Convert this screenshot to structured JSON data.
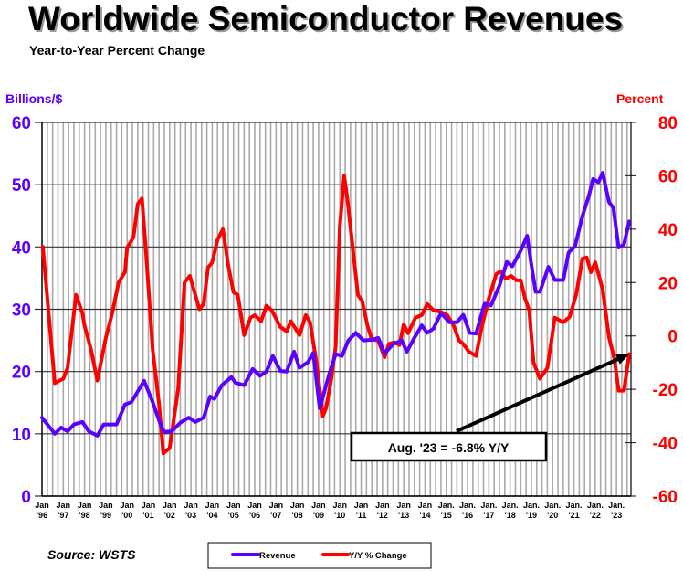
{
  "chart_data": {
    "type": "line",
    "title": "Worldwide Semiconductor Revenues",
    "subtitle": "Year-to-Year Percent Change",
    "left_axis": {
      "label": "Billions/$",
      "range": [
        0,
        60
      ],
      "ticks": [
        0,
        10,
        20,
        30,
        40,
        50,
        60
      ]
    },
    "right_axis": {
      "label": "Percent",
      "range": [
        -60,
        80
      ],
      "ticks": [
        -60,
        -40,
        -20,
        0,
        20,
        40,
        60,
        80
      ]
    },
    "x_range": [
      1996,
      2023.68
    ],
    "x_ticks": [
      {
        "m": "Jan",
        "y": "'96"
      },
      {
        "m": "Jan",
        "y": "'97"
      },
      {
        "m": "Jan",
        "y": "'98"
      },
      {
        "m": "Jan",
        "y": "'99"
      },
      {
        "m": "Jan",
        "y": "'00"
      },
      {
        "m": "Jan",
        "y": "'01"
      },
      {
        "m": "Jan",
        "y": "'02"
      },
      {
        "m": "Jan",
        "y": "'03"
      },
      {
        "m": "Jan",
        "y": "'04"
      },
      {
        "m": "Jan",
        "y": "'05"
      },
      {
        "m": "Jan",
        "y": "'06"
      },
      {
        "m": "Jan",
        "y": "'07"
      },
      {
        "m": "Jan",
        "y": "'08"
      },
      {
        "m": "Jan",
        "y": "'09"
      },
      {
        "m": "Jan",
        "y": "'10"
      },
      {
        "m": "Jan",
        "y": "'11"
      },
      {
        "m": "Jan",
        "y": "'12"
      },
      {
        "m": "Jan",
        "y": "'13"
      },
      {
        "m": "Jan",
        "y": "'14"
      },
      {
        "m": "Jan.",
        "y": "'15"
      },
      {
        "m": "Jan.",
        "y": "'16"
      },
      {
        "m": "Jan.",
        "y": "'17"
      },
      {
        "m": "Jan.",
        "y": "'18"
      },
      {
        "m": "Jan.",
        "y": "'19"
      },
      {
        "m": "Jan.",
        "y": "'20"
      },
      {
        "m": "Jan.",
        "y": "'21"
      },
      {
        "m": "Jan.",
        "y": "'22"
      },
      {
        "m": "Jan.",
        "y": "'23"
      }
    ],
    "grid": true,
    "legend_position": "bottom",
    "series": [
      {
        "name": "Revenue",
        "axis": "left",
        "color": "#5a00ff",
        "points": [
          [
            1996.0,
            12.6
          ],
          [
            1996.6,
            10.0
          ],
          [
            1996.9,
            11.0
          ],
          [
            1997.2,
            10.4
          ],
          [
            1997.5,
            11.5
          ],
          [
            1997.9,
            11.9
          ],
          [
            1998.2,
            10.4
          ],
          [
            1998.6,
            9.7
          ],
          [
            1998.9,
            11.5
          ],
          [
            1999.5,
            11.5
          ],
          [
            1999.9,
            14.7
          ],
          [
            2000.2,
            15.1
          ],
          [
            2000.8,
            18.5
          ],
          [
            2001.2,
            15.1
          ],
          [
            2001.6,
            11.2
          ],
          [
            2001.75,
            10.3
          ],
          [
            2002.1,
            10.4
          ],
          [
            2002.5,
            11.8
          ],
          [
            2002.9,
            12.6
          ],
          [
            2003.2,
            11.9
          ],
          [
            2003.6,
            12.6
          ],
          [
            2003.9,
            16.0
          ],
          [
            2004.1,
            15.6
          ],
          [
            2004.45,
            17.8
          ],
          [
            2004.9,
            19.1
          ],
          [
            2005.1,
            18.2
          ],
          [
            2005.5,
            17.8
          ],
          [
            2005.9,
            20.4
          ],
          [
            2006.25,
            19.3
          ],
          [
            2006.55,
            20.0
          ],
          [
            2006.85,
            22.5
          ],
          [
            2007.2,
            20.1
          ],
          [
            2007.5,
            20.0
          ],
          [
            2007.85,
            23.2
          ],
          [
            2008.1,
            20.6
          ],
          [
            2008.5,
            21.5
          ],
          [
            2008.75,
            23.0
          ],
          [
            2009.05,
            14.1
          ],
          [
            2009.5,
            19.6
          ],
          [
            2009.8,
            22.8
          ],
          [
            2010.1,
            22.5
          ],
          [
            2010.4,
            25.0
          ],
          [
            2010.75,
            26.2
          ],
          [
            2011.1,
            25.0
          ],
          [
            2011.5,
            25.1
          ],
          [
            2011.8,
            25.4
          ],
          [
            2012.1,
            22.9
          ],
          [
            2012.5,
            24.4
          ],
          [
            2012.9,
            25.0
          ],
          [
            2013.15,
            23.2
          ],
          [
            2013.45,
            25.1
          ],
          [
            2013.85,
            27.4
          ],
          [
            2014.1,
            26.2
          ],
          [
            2014.4,
            26.9
          ],
          [
            2014.75,
            29.4
          ],
          [
            2015.15,
            27.9
          ],
          [
            2015.5,
            27.9
          ],
          [
            2015.8,
            29.1
          ],
          [
            2016.1,
            26.2
          ],
          [
            2016.4,
            26.1
          ],
          [
            2016.8,
            30.9
          ],
          [
            2017.1,
            30.6
          ],
          [
            2017.5,
            33.8
          ],
          [
            2017.85,
            37.6
          ],
          [
            2018.1,
            36.9
          ],
          [
            2018.5,
            39.4
          ],
          [
            2018.8,
            41.8
          ],
          [
            2019.0,
            37.2
          ],
          [
            2019.2,
            32.8
          ],
          [
            2019.4,
            32.8
          ],
          [
            2019.8,
            36.8
          ],
          [
            2020.1,
            34.7
          ],
          [
            2020.5,
            34.7
          ],
          [
            2020.75,
            39.1
          ],
          [
            2021.05,
            40.1
          ],
          [
            2021.4,
            45.0
          ],
          [
            2021.7,
            48.2
          ],
          [
            2021.9,
            50.9
          ],
          [
            2022.15,
            50.4
          ],
          [
            2022.35,
            51.9
          ],
          [
            2022.65,
            47.2
          ],
          [
            2022.85,
            46.3
          ],
          [
            2023.1,
            39.9
          ],
          [
            2023.35,
            40.4
          ],
          [
            2023.6,
            44.1
          ]
        ]
      },
      {
        "name": "Y/Y % Change",
        "axis": "right",
        "color": "#ff0000",
        "points": [
          [
            1996.04,
            33.4
          ],
          [
            1996.6,
            -17.7
          ],
          [
            1997.0,
            -16.0
          ],
          [
            1997.2,
            -12.0
          ],
          [
            1997.6,
            15.4
          ],
          [
            1997.9,
            8.5
          ],
          [
            1998.0,
            3.8
          ],
          [
            1998.3,
            -5.0
          ],
          [
            1998.6,
            -16.7
          ],
          [
            1999.0,
            -0.7
          ],
          [
            1999.3,
            8.5
          ],
          [
            1999.6,
            20.0
          ],
          [
            1999.9,
            24.0
          ],
          [
            2000.0,
            33.0
          ],
          [
            2000.3,
            37.0
          ],
          [
            2000.5,
            49.5
          ],
          [
            2000.7,
            51.5
          ],
          [
            2000.9,
            30.0
          ],
          [
            2001.2,
            -5.0
          ],
          [
            2001.5,
            -25.6
          ],
          [
            2001.7,
            -44.0
          ],
          [
            2002.0,
            -42.0
          ],
          [
            2002.4,
            -20.0
          ],
          [
            2002.7,
            20.0
          ],
          [
            2002.95,
            22.5
          ],
          [
            2003.4,
            10.0
          ],
          [
            2003.6,
            12.0
          ],
          [
            2003.8,
            25.6
          ],
          [
            2004.0,
            27.6
          ],
          [
            2004.25,
            36.0
          ],
          [
            2004.5,
            40.0
          ],
          [
            2004.75,
            26.6
          ],
          [
            2005.0,
            16.4
          ],
          [
            2005.2,
            15.4
          ],
          [
            2005.5,
            0.3
          ],
          [
            2005.8,
            6.8
          ],
          [
            2006.0,
            7.8
          ],
          [
            2006.3,
            5.5
          ],
          [
            2006.55,
            11.3
          ],
          [
            2006.8,
            9.6
          ],
          [
            2007.2,
            3.4
          ],
          [
            2007.5,
            1.7
          ],
          [
            2007.7,
            5.5
          ],
          [
            2008.1,
            0.3
          ],
          [
            2008.4,
            7.8
          ],
          [
            2008.6,
            5.1
          ],
          [
            2008.9,
            -9.9
          ],
          [
            2009.2,
            -30.0
          ],
          [
            2009.35,
            -27.0
          ],
          [
            2009.6,
            -16.0
          ],
          [
            2009.8,
            -4.0
          ],
          [
            2010.0,
            41.0
          ],
          [
            2010.2,
            60.0
          ],
          [
            2010.35,
            51.5
          ],
          [
            2010.6,
            33.4
          ],
          [
            2010.85,
            15.4
          ],
          [
            2011.05,
            13.0
          ],
          [
            2011.3,
            3.8
          ],
          [
            2011.5,
            -1.4
          ],
          [
            2011.8,
            -1.7
          ],
          [
            2012.1,
            -8.0
          ],
          [
            2012.3,
            -3.0
          ],
          [
            2012.55,
            -2.4
          ],
          [
            2012.8,
            -3.4
          ],
          [
            2013.0,
            4.4
          ],
          [
            2013.2,
            1.0
          ],
          [
            2013.55,
            6.8
          ],
          [
            2013.85,
            7.8
          ],
          [
            2014.1,
            12.0
          ],
          [
            2014.4,
            9.6
          ],
          [
            2014.75,
            9.0
          ],
          [
            2015.05,
            7.8
          ],
          [
            2015.35,
            3.8
          ],
          [
            2015.6,
            -1.7
          ],
          [
            2015.8,
            -3.0
          ],
          [
            2016.05,
            -5.8
          ],
          [
            2016.4,
            -7.5
          ],
          [
            2016.65,
            2.7
          ],
          [
            2017.0,
            14.0
          ],
          [
            2017.35,
            23.2
          ],
          [
            2017.55,
            24.2
          ],
          [
            2017.8,
            21.5
          ],
          [
            2018.05,
            22.5
          ],
          [
            2018.3,
            20.8
          ],
          [
            2018.5,
            20.8
          ],
          [
            2018.7,
            14.0
          ],
          [
            2018.9,
            9.6
          ],
          [
            2019.1,
            -9.9
          ],
          [
            2019.4,
            -16.0
          ],
          [
            2019.75,
            -12.0
          ],
          [
            2020.1,
            6.8
          ],
          [
            2020.5,
            5.1
          ],
          [
            2020.8,
            7.2
          ],
          [
            2021.1,
            15.4
          ],
          [
            2021.4,
            29.0
          ],
          [
            2021.6,
            29.4
          ],
          [
            2021.8,
            23.9
          ],
          [
            2022.0,
            27.6
          ],
          [
            2022.35,
            17.4
          ],
          [
            2022.65,
            -0.7
          ],
          [
            2022.9,
            -8.5
          ],
          [
            2023.1,
            -20.5
          ],
          [
            2023.35,
            -20.5
          ],
          [
            2023.6,
            -6.8
          ]
        ]
      }
    ],
    "annotation": {
      "text": "Aug. '23 = -6.8% Y/Y",
      "target": [
        2023.6,
        -6.8
      ]
    },
    "source": "Source: WSTS"
  }
}
